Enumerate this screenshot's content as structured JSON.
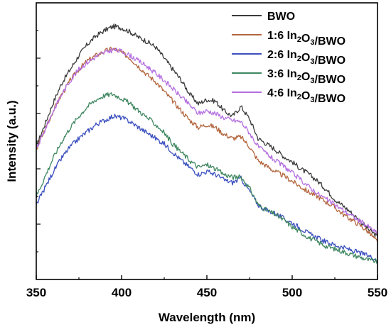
{
  "chart_data": {
    "type": "line",
    "title": "",
    "xlabel": "Wavelength (nm)",
    "ylabel": "Intensity (a.u.)",
    "xlim": [
      350,
      550
    ],
    "ylim": [
      0,
      1
    ],
    "xticks": [
      350,
      400,
      450,
      500,
      550
    ],
    "grid": false,
    "legend_position": "top-right",
    "y_tick_labels_shown": false,
    "series": [
      {
        "name": "BWO",
        "legend_parts": [
          {
            "t": "BWO",
            "sub": false
          }
        ],
        "color": "#3a3a3a",
        "x": [
          350,
          355,
          360,
          365,
          370,
          375,
          380,
          385,
          390,
          395,
          400,
          405,
          410,
          415,
          420,
          425,
          430,
          435,
          440,
          445,
          450,
          455,
          460,
          465,
          470,
          475,
          480,
          485,
          490,
          495,
          500,
          505,
          510,
          515,
          520,
          525,
          530,
          535,
          540,
          545,
          550
        ],
        "y": [
          0.48,
          0.56,
          0.64,
          0.71,
          0.76,
          0.81,
          0.85,
          0.88,
          0.9,
          0.915,
          0.91,
          0.895,
          0.875,
          0.86,
          0.84,
          0.8,
          0.76,
          0.72,
          0.67,
          0.635,
          0.65,
          0.645,
          0.61,
          0.59,
          0.625,
          0.58,
          0.51,
          0.49,
          0.47,
          0.445,
          0.425,
          0.4,
          0.38,
          0.355,
          0.325,
          0.29,
          0.265,
          0.24,
          0.21,
          0.18,
          0.155
        ]
      },
      {
        "name": "1:6 In2O3/BWO",
        "legend_parts": [
          {
            "t": "1:6 In",
            "sub": false
          },
          {
            "t": "2",
            "sub": true
          },
          {
            "t": "O",
            "sub": false
          },
          {
            "t": "3",
            "sub": true
          },
          {
            "t": "/BWO",
            "sub": false
          }
        ],
        "color": "#b3653d",
        "x": [
          350,
          355,
          360,
          365,
          370,
          375,
          380,
          385,
          390,
          395,
          400,
          405,
          410,
          415,
          420,
          425,
          430,
          435,
          440,
          445,
          450,
          455,
          460,
          465,
          470,
          475,
          480,
          485,
          490,
          495,
          500,
          505,
          510,
          515,
          520,
          525,
          530,
          535,
          540,
          545,
          550
        ],
        "y": [
          0.47,
          0.54,
          0.61,
          0.67,
          0.72,
          0.76,
          0.79,
          0.81,
          0.825,
          0.835,
          0.82,
          0.8,
          0.77,
          0.74,
          0.715,
          0.68,
          0.645,
          0.61,
          0.575,
          0.55,
          0.56,
          0.55,
          0.525,
          0.51,
          0.515,
          0.48,
          0.43,
          0.41,
          0.39,
          0.375,
          0.355,
          0.335,
          0.315,
          0.3,
          0.28,
          0.26,
          0.235,
          0.215,
          0.195,
          0.17,
          0.135
        ]
      },
      {
        "name": "2:6 In2O3/BWO",
        "legend_parts": [
          {
            "t": "2:6 In",
            "sub": false
          },
          {
            "t": "2",
            "sub": true
          },
          {
            "t": "O",
            "sub": false
          },
          {
            "t": "3",
            "sub": true
          },
          {
            "t": "/BWO",
            "sub": false
          }
        ],
        "color": "#3b4fbf",
        "x": [
          350,
          355,
          360,
          365,
          370,
          375,
          380,
          385,
          390,
          395,
          400,
          405,
          410,
          415,
          420,
          425,
          430,
          435,
          440,
          445,
          450,
          455,
          460,
          465,
          470,
          475,
          480,
          485,
          490,
          495,
          500,
          505,
          510,
          515,
          520,
          525,
          530,
          535,
          540,
          545,
          550
        ],
        "y": [
          0.27,
          0.33,
          0.39,
          0.44,
          0.48,
          0.51,
          0.535,
          0.56,
          0.575,
          0.59,
          0.585,
          0.57,
          0.55,
          0.53,
          0.51,
          0.49,
          0.46,
          0.43,
          0.405,
          0.38,
          0.39,
          0.38,
          0.36,
          0.35,
          0.365,
          0.32,
          0.27,
          0.25,
          0.24,
          0.22,
          0.205,
          0.185,
          0.165,
          0.15,
          0.135,
          0.125,
          0.115,
          0.105,
          0.095,
          0.085,
          0.07
        ]
      },
      {
        "name": "3:6 In2O3/BWO",
        "legend_parts": [
          {
            "t": "3:6 In",
            "sub": false
          },
          {
            "t": "2",
            "sub": true
          },
          {
            "t": "O",
            "sub": false
          },
          {
            "t": "3",
            "sub": true
          },
          {
            "t": "/BWO",
            "sub": false
          }
        ],
        "color": "#3f8760",
        "x": [
          350,
          355,
          360,
          365,
          370,
          375,
          380,
          385,
          390,
          395,
          400,
          405,
          410,
          415,
          420,
          425,
          430,
          435,
          440,
          445,
          450,
          455,
          460,
          465,
          470,
          475,
          480,
          485,
          490,
          495,
          500,
          505,
          510,
          515,
          520,
          525,
          530,
          535,
          540,
          545,
          550
        ],
        "y": [
          0.3,
          0.37,
          0.44,
          0.5,
          0.55,
          0.59,
          0.625,
          0.65,
          0.665,
          0.67,
          0.655,
          0.635,
          0.61,
          0.585,
          0.56,
          0.53,
          0.49,
          0.46,
          0.43,
          0.405,
          0.415,
          0.4,
          0.38,
          0.37,
          0.37,
          0.33,
          0.27,
          0.25,
          0.235,
          0.215,
          0.19,
          0.17,
          0.15,
          0.135,
          0.12,
          0.11,
          0.1,
          0.09,
          0.08,
          0.07,
          0.065
        ]
      },
      {
        "name": "4:6 In2O3/BWO",
        "legend_parts": [
          {
            "t": "4:6 In",
            "sub": false
          },
          {
            "t": "2",
            "sub": true
          },
          {
            "t": "O",
            "sub": false
          },
          {
            "t": "3",
            "sub": true
          },
          {
            "t": "/BWO",
            "sub": false
          }
        ],
        "color": "#b46ee0",
        "x": [
          350,
          355,
          360,
          365,
          370,
          375,
          380,
          385,
          390,
          395,
          400,
          405,
          410,
          415,
          420,
          425,
          430,
          435,
          440,
          445,
          450,
          455,
          460,
          465,
          470,
          475,
          480,
          485,
          490,
          495,
          500,
          505,
          510,
          515,
          520,
          525,
          530,
          535,
          540,
          545,
          550
        ],
        "y": [
          0.47,
          0.54,
          0.61,
          0.67,
          0.72,
          0.76,
          0.785,
          0.805,
          0.82,
          0.83,
          0.825,
          0.81,
          0.79,
          0.77,
          0.745,
          0.72,
          0.69,
          0.66,
          0.63,
          0.6,
          0.61,
          0.6,
          0.585,
          0.575,
          0.57,
          0.53,
          0.48,
          0.455,
          0.43,
          0.41,
          0.385,
          0.36,
          0.335,
          0.31,
          0.29,
          0.27,
          0.25,
          0.23,
          0.21,
          0.19,
          0.165
        ]
      }
    ]
  }
}
